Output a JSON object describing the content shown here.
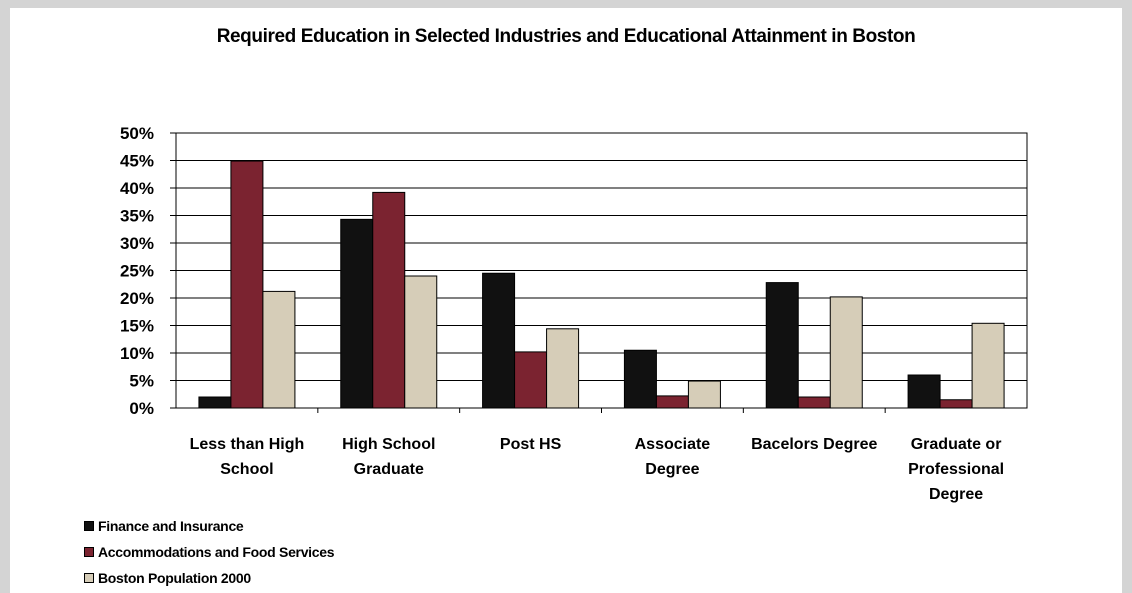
{
  "chart_data": {
    "type": "bar",
    "title": "Required Education in Selected Industries and Educational Attainment in Boston",
    "categories": [
      [
        "Less than High",
        "School"
      ],
      [
        "High School",
        "Graduate"
      ],
      [
        "Post HS"
      ],
      [
        "Associate",
        "Degree"
      ],
      [
        "Bacelors Degree"
      ],
      [
        "Graduate or",
        "Professional",
        "Degree"
      ]
    ],
    "series": [
      {
        "name": "Finance and Insurance",
        "color": "#111111",
        "values": [
          2,
          34.3,
          24.5,
          10.5,
          22.8,
          6
        ]
      },
      {
        "name": "Accommodations and Food Services",
        "color": "#7b2330",
        "values": [
          44.9,
          39.2,
          10.2,
          2.2,
          2,
          1.5
        ]
      },
      {
        "name": "Boston Population 2000",
        "color": "#d6cdb8",
        "values": [
          21.2,
          24,
          14.4,
          4.9,
          20.2,
          15.4
        ]
      }
    ],
    "ylim": [
      0,
      50
    ],
    "yticks": [
      "0%",
      "5%",
      "10%",
      "15%",
      "20%",
      "25%",
      "30%",
      "35%",
      "40%",
      "45%",
      "50%"
    ],
    "grid": true,
    "legend_position": "bottom-left"
  }
}
